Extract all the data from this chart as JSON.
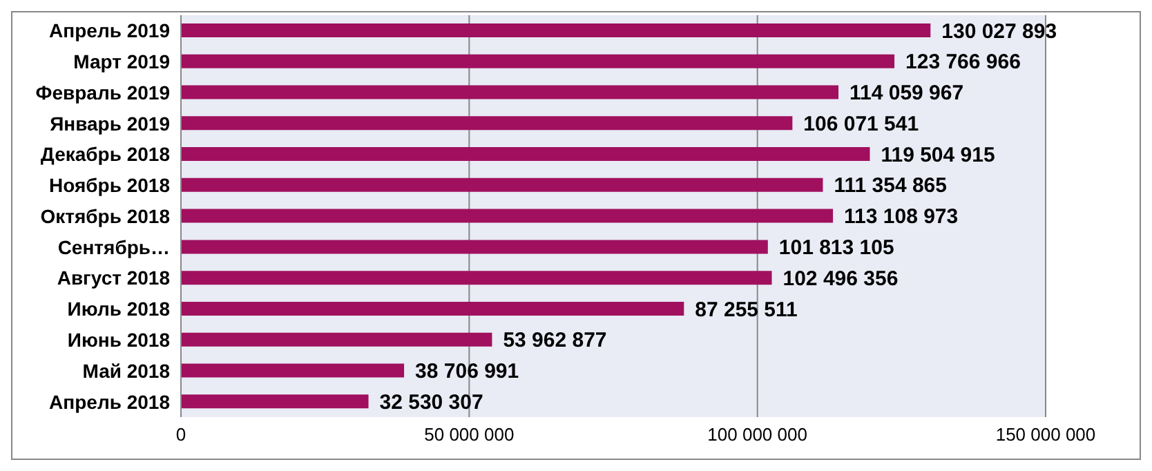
{
  "chart_data": {
    "type": "bar",
    "orientation": "horizontal",
    "categories": [
      "Апрель 2019",
      "Март 2019",
      "Февраль 2019",
      "Январь 2019",
      "Декабрь 2018",
      "Ноябрь 2018",
      "Октябрь 2018",
      "Сентябрь…",
      "Август 2018",
      "Июль 2018",
      "Июнь 2018",
      "Май 2018",
      "Апрель 2018"
    ],
    "values": [
      130027893,
      123766966,
      114059967,
      106071541,
      119504915,
      111354865,
      113108973,
      101813105,
      102496356,
      87255511,
      53962877,
      38706991,
      32530307
    ],
    "value_labels": [
      "130 027 893",
      "123 766 966",
      "114 059 967",
      "106 071 541",
      "119 504 915",
      "111 354 865",
      "113 108 973",
      "101 813 105",
      "102 496 356",
      "87 255 511",
      "53 962 877",
      "38 706 991",
      "32 530 307"
    ],
    "color": "#a0105e",
    "xlim": [
      0,
      150000000
    ],
    "xticks": [
      0,
      {
        "value": 50000000,
        "label": "50 000 000"
      },
      {
        "value": 100000000,
        "label": "100 000 000"
      },
      {
        "value": 150000000,
        "label": "150 000 000"
      }
    ],
    "grid": "x"
  }
}
